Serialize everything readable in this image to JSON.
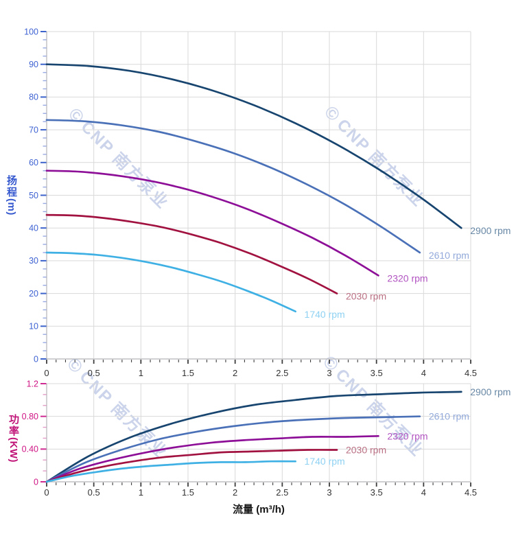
{
  "watermark": {
    "logo_icon": "©",
    "brand": "CNP",
    "company": "南方泵业",
    "color": "#cbd4ea"
  },
  "flow_axis_label": "流量 (m³/h)",
  "chart_data": [
    {
      "id": "head",
      "type": "line",
      "title": "",
      "xlabel": "流量 (m³/h)",
      "ylabel": "扬程 (m)",
      "ylabel_text": "扬程",
      "ylabel_unit": "(m)",
      "xlim": [
        0,
        4.5
      ],
      "ylim": [
        0,
        100
      ],
      "grid": true,
      "legend_position": "right-of-curve-ends",
      "axis_color": "#3e62d2",
      "tick_color": "#3c63cc",
      "x_ticks": [
        {
          "v": 0,
          "label": "0"
        },
        {
          "v": 0.5,
          "label": "0.5"
        },
        {
          "v": 1,
          "label": "1"
        },
        {
          "v": 1.5,
          "label": "1.5"
        },
        {
          "v": 2,
          "label": "2"
        },
        {
          "v": 2.5,
          "label": "2.5"
        },
        {
          "v": 3,
          "label": "3"
        },
        {
          "v": 3.5,
          "label": "3.5"
        },
        {
          "v": 4,
          "label": "4"
        },
        {
          "v": 4.5,
          "label": "4.5"
        }
      ],
      "y_ticks": [
        {
          "v": 100,
          "label": "100"
        },
        {
          "v": 90,
          "label": "90"
        },
        {
          "v": 80,
          "label": "80"
        },
        {
          "v": 70,
          "label": "70"
        },
        {
          "v": 60,
          "label": "60"
        },
        {
          "v": 50,
          "label": "50"
        },
        {
          "v": 40,
          "label": "40"
        },
        {
          "v": 30,
          "label": "30"
        },
        {
          "v": 20,
          "label": "20"
        },
        {
          "v": 10,
          "label": "10"
        },
        {
          "v": 0,
          "label": "0"
        }
      ],
      "series": [
        {
          "name": "2900 rpm",
          "rpm": 2900,
          "color": "#17456f",
          "label_color": "#6787a5",
          "points": [
            [
              0,
              90
            ],
            [
              0.44,
              89.5
            ],
            [
              0.88,
              88
            ],
            [
              1.32,
              85.5
            ],
            [
              1.76,
              82
            ],
            [
              2.2,
              77.5
            ],
            [
              2.64,
              72
            ],
            [
              3.08,
              65.5
            ],
            [
              3.52,
              58
            ],
            [
              3.96,
              49.5
            ],
            [
              4.4,
              40
            ]
          ]
        },
        {
          "name": "2610 rpm",
          "rpm": 2610,
          "color": "#4a71b8",
          "label_color": "#92a9da",
          "points": [
            [
              0,
              73
            ],
            [
              0.4,
              72.6
            ],
            [
              0.79,
              71.4
            ],
            [
              1.19,
              69.4
            ],
            [
              1.58,
              66.5
            ],
            [
              1.98,
              62.9
            ],
            [
              2.38,
              58.4
            ],
            [
              2.77,
              53.2
            ],
            [
              3.17,
              47.1
            ],
            [
              3.56,
              40.2
            ],
            [
              3.96,
              32.5
            ]
          ]
        },
        {
          "name": "2320 rpm",
          "rpm": 2320,
          "color": "#8d0f97",
          "label_color": "#b153c1",
          "points": [
            [
              0,
              57.5
            ],
            [
              0.35,
              57.2
            ],
            [
              0.7,
              56.2
            ],
            [
              1.06,
              54.6
            ],
            [
              1.41,
              52.4
            ],
            [
              1.76,
              49.5
            ],
            [
              2.11,
              46
            ],
            [
              2.46,
              41.8
            ],
            [
              2.82,
              37
            ],
            [
              3.17,
              31.6
            ],
            [
              3.52,
              25.5
            ]
          ]
        },
        {
          "name": "2030 rpm",
          "rpm": 2030,
          "color": "#a11240",
          "label_color": "#ba7083",
          "points": [
            [
              0,
              44
            ],
            [
              0.31,
              43.8
            ],
            [
              0.62,
              43
            ],
            [
              0.92,
              41.8
            ],
            [
              1.23,
              40.2
            ],
            [
              1.54,
              38
            ],
            [
              1.85,
              35.4
            ],
            [
              2.16,
              32.2
            ],
            [
              2.46,
              28.6
            ],
            [
              2.77,
              24.6
            ],
            [
              3.08,
              20
            ]
          ]
        },
        {
          "name": "1740 rpm",
          "rpm": 1740,
          "color": "#3fb0e4",
          "label_color": "#8fd1f2",
          "points": [
            [
              0,
              32.5
            ],
            [
              0.26,
              32.3
            ],
            [
              0.53,
              31.8
            ],
            [
              0.79,
              30.9
            ],
            [
              1.06,
              29.6
            ],
            [
              1.32,
              28
            ],
            [
              1.58,
              26
            ],
            [
              1.85,
              23.7
            ],
            [
              2.11,
              21
            ],
            [
              2.38,
              17.9
            ],
            [
              2.64,
              14.5
            ]
          ]
        }
      ]
    },
    {
      "id": "power",
      "type": "line",
      "title": "",
      "xlabel": "流量 (m³/h)",
      "ylabel": "功率 (KW)",
      "ylabel_text": "功率",
      "ylabel_unit": "(KW)",
      "xlim": [
        0,
        4.5
      ],
      "ylim": [
        0,
        1.2
      ],
      "grid": true,
      "legend_position": "right-of-curve-ends",
      "axis_color": "#cf1484",
      "tick_color": "#cf2a92",
      "x_ticks": [
        {
          "v": 0,
          "label": "0"
        },
        {
          "v": 0.5,
          "label": "0.5"
        },
        {
          "v": 1,
          "label": "1"
        },
        {
          "v": 1.5,
          "label": "1.5"
        },
        {
          "v": 2,
          "label": "2"
        },
        {
          "v": 2.5,
          "label": "2.5"
        },
        {
          "v": 3,
          "label": "3"
        },
        {
          "v": 3.5,
          "label": "3.5"
        },
        {
          "v": 4,
          "label": "4"
        },
        {
          "v": 4.5,
          "label": "4.5"
        }
      ],
      "y_ticks": [
        {
          "v": 1.2,
          "label": "1.2"
        },
        {
          "v": 0.8,
          "label": "0.80"
        },
        {
          "v": 0.4,
          "label": "0.40"
        },
        {
          "v": 0,
          "label": "0"
        }
      ],
      "series": [
        {
          "name": "2900 rpm",
          "rpm": 2900,
          "color": "#17456f",
          "label_color": "#6787a5",
          "points": [
            [
              0,
              0
            ],
            [
              0.44,
              0.31
            ],
            [
              0.88,
              0.54
            ],
            [
              1.32,
              0.71
            ],
            [
              1.76,
              0.84
            ],
            [
              2.2,
              0.94
            ],
            [
              2.64,
              1.0
            ],
            [
              3.08,
              1.05
            ],
            [
              3.52,
              1.07
            ],
            [
              3.96,
              1.09
            ],
            [
              4.4,
              1.1
            ]
          ]
        },
        {
          "name": "2610 rpm",
          "rpm": 2610,
          "color": "#4a71b8",
          "label_color": "#92a9da",
          "points": [
            [
              0,
              0
            ],
            [
              0.4,
              0.23
            ],
            [
              0.79,
              0.39
            ],
            [
              1.19,
              0.52
            ],
            [
              1.58,
              0.61
            ],
            [
              1.98,
              0.68
            ],
            [
              2.38,
              0.73
            ],
            [
              2.77,
              0.76
            ],
            [
              3.17,
              0.78
            ],
            [
              3.56,
              0.79
            ],
            [
              3.96,
              0.8
            ]
          ]
        },
        {
          "name": "2320 rpm",
          "rpm": 2320,
          "color": "#8d0f97",
          "label_color": "#b153c1",
          "points": [
            [
              0,
              0
            ],
            [
              0.35,
              0.16
            ],
            [
              0.7,
              0.27
            ],
            [
              1.06,
              0.36
            ],
            [
              1.41,
              0.43
            ],
            [
              1.76,
              0.48
            ],
            [
              2.11,
              0.51
            ],
            [
              2.46,
              0.53
            ],
            [
              2.82,
              0.55
            ],
            [
              3.17,
              0.55
            ],
            [
              3.52,
              0.56
            ]
          ]
        },
        {
          "name": "2030 rpm",
          "rpm": 2030,
          "color": "#a11240",
          "label_color": "#ba7083",
          "points": [
            [
              0,
              0
            ],
            [
              0.31,
              0.11
            ],
            [
              0.62,
              0.19
            ],
            [
              0.92,
              0.25
            ],
            [
              1.23,
              0.3
            ],
            [
              1.54,
              0.33
            ],
            [
              1.85,
              0.36
            ],
            [
              2.16,
              0.37
            ],
            [
              2.46,
              0.38
            ],
            [
              2.77,
              0.39
            ],
            [
              3.08,
              0.39
            ]
          ]
        },
        {
          "name": "1740 rpm",
          "rpm": 1740,
          "color": "#3fb0e4",
          "label_color": "#8fd1f2",
          "points": [
            [
              0,
              0
            ],
            [
              0.26,
              0.07
            ],
            [
              0.53,
              0.12
            ],
            [
              0.79,
              0.16
            ],
            [
              1.06,
              0.19
            ],
            [
              1.32,
              0.21
            ],
            [
              1.58,
              0.23
            ],
            [
              1.85,
              0.24
            ],
            [
              2.11,
              0.24
            ],
            [
              2.38,
              0.25
            ],
            [
              2.64,
              0.25
            ]
          ]
        }
      ]
    }
  ]
}
